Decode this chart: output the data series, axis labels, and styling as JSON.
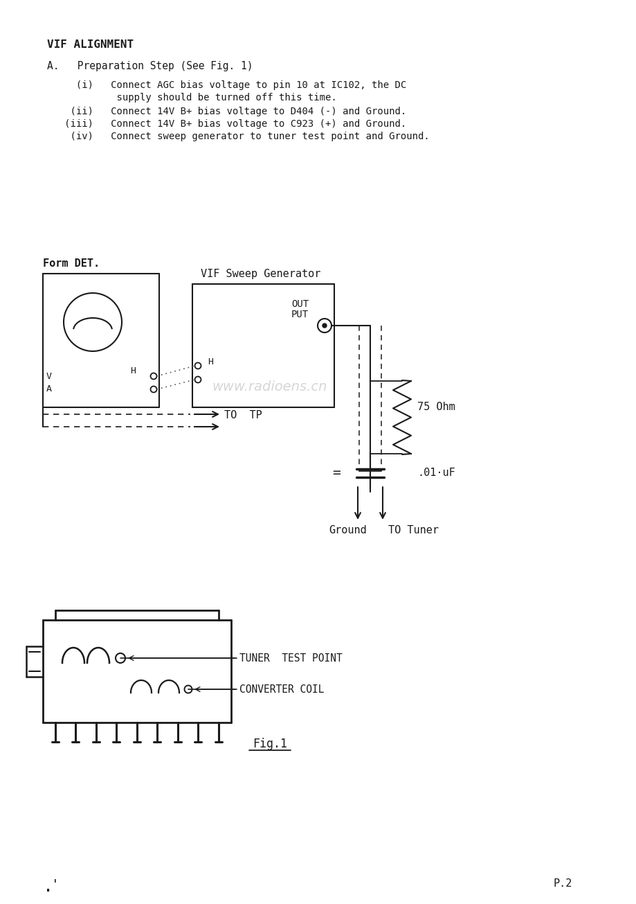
{
  "title": "VIF ALIGNMENT",
  "line_a": "A.   Preparation Step (See Fig. 1)",
  "item_i_1": "     (i)   Connect AGC bias voltage to pin 10 at IC102, the DC",
  "item_i_2": "            supply should be turned off this time.",
  "item_ii": "    (ii)   Connect 14V B+ bias voltage to D404 (-) and Ground.",
  "item_iii": "   (iii)   Connect 14V B+ bias voltage to C923 (+) and Ground.",
  "item_iv": "    (iv)   Connect sweep generator to tuner test point and Ground.",
  "fig_label": "Form DET.",
  "gen_label": "VIF Sweep Generator",
  "out_label1": "OUT",
  "out_label2": "PUT",
  "v_label": "V",
  "a_label": "A",
  "h_label_det": "H",
  "h_label_gen": "H",
  "to_tp_label": "TO  TP",
  "ohm_label": "75 Ohm",
  "cap_label": ".01·uF",
  "ground_label": "Ground",
  "tuner_label": "TO Tuner",
  "tuner_test_label": "TUNER  TEST POINT",
  "converter_label": "CONVERTER COIL",
  "fig1_label": "Fig.1",
  "page_label": "P.2",
  "watermark": "www.radioens.cn",
  "bg_color": "#ffffff",
  "text_color": "#1a1a1a"
}
